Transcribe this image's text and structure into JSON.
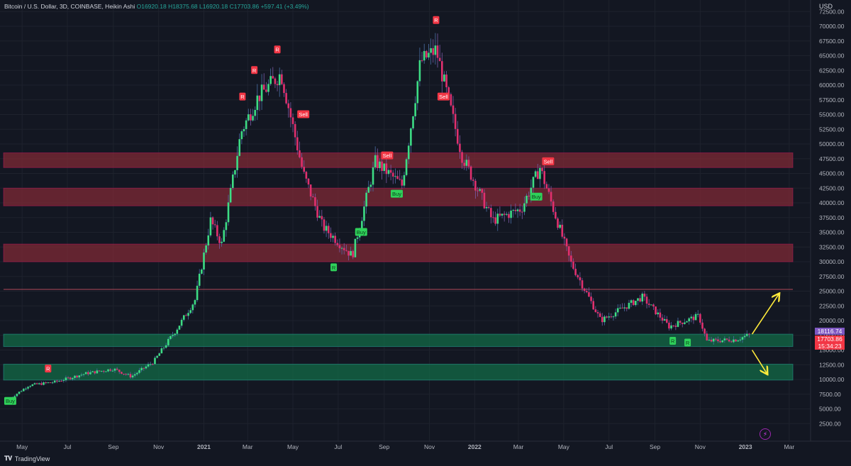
{
  "legend": {
    "symbol": "Bitcoin / U.S. Dollar, 3D, COINBASE, Heikin Ashi",
    "open": "O16920.18",
    "high": "H18375.68",
    "low": "L16920.18",
    "close": "C17703.86",
    "change": "+597.41 (+3.49%)"
  },
  "currency": "USD",
  "price_tags": {
    "upper": "18116.74",
    "close": "17703.86",
    "countdown": "15:34:23"
  },
  "brand": "TradingView",
  "colors": {
    "background": "#131722",
    "up_candle": "#26a69a",
    "down_candle": "#c2185b",
    "resistance_zone": "#7f2a36",
    "support_zone": "#136b47",
    "arrow": "#ffeb3b"
  },
  "chart_data": {
    "type": "candlestick",
    "title": "Bitcoin / U.S. Dollar, 3D, COINBASE, Heikin Ashi",
    "xlabel": "",
    "ylabel": "",
    "x_ticks": [
      "May",
      "Jul",
      "Sep",
      "Nov",
      "2021",
      "Mar",
      "May",
      "Jul",
      "Sep",
      "Nov",
      "2022",
      "Mar",
      "May",
      "Jul",
      "Sep",
      "Nov",
      "2023",
      "Mar"
    ],
    "y_ticks": [
      "72500.00",
      "70000.00",
      "67500.00",
      "65000.00",
      "62500.00",
      "60000.00",
      "57500.00",
      "55000.00",
      "52500.00",
      "50000.00",
      "47500.00",
      "45000.00",
      "42500.00",
      "40000.00",
      "37500.00",
      "35000.00",
      "32500.00",
      "30000.00",
      "27500.00",
      "25000.00",
      "22500.00",
      "20000.00",
      "17500.00",
      "15000.00",
      "12500.00",
      "10000.00",
      "7500.00",
      "5000.00",
      "2500.00"
    ],
    "ylim": [
      0,
      73500
    ],
    "price_path": [
      {
        "date": "2020-04-15",
        "close": 6800
      },
      {
        "date": "2020-05-10",
        "close": 9000
      },
      {
        "date": "2020-06-15",
        "close": 9600
      },
      {
        "date": "2020-07-25",
        "close": 11000
      },
      {
        "date": "2020-09-01",
        "close": 11800
      },
      {
        "date": "2020-09-25",
        "close": 10500
      },
      {
        "date": "2020-10-25",
        "close": 13000
      },
      {
        "date": "2020-11-25",
        "close": 18500
      },
      {
        "date": "2020-12-20",
        "close": 23500
      },
      {
        "date": "2021-01-10",
        "close": 37000
      },
      {
        "date": "2021-01-25",
        "close": 33000
      },
      {
        "date": "2021-02-20",
        "close": 52000
      },
      {
        "date": "2021-03-15",
        "close": 58000
      },
      {
        "date": "2021-04-15",
        "close": 62000
      },
      {
        "date": "2021-05-15",
        "close": 45000
      },
      {
        "date": "2021-06-10",
        "close": 36000
      },
      {
        "date": "2021-07-20",
        "close": 31000
      },
      {
        "date": "2021-08-20",
        "close": 47000
      },
      {
        "date": "2021-09-25",
        "close": 43000
      },
      {
        "date": "2021-10-20",
        "close": 64000
      },
      {
        "date": "2021-11-10",
        "close": 66000
      },
      {
        "date": "2021-12-15",
        "close": 48000
      },
      {
        "date": "2022-01-25",
        "close": 37000
      },
      {
        "date": "2022-03-05",
        "close": 39000
      },
      {
        "date": "2022-03-30",
        "close": 46000
      },
      {
        "date": "2022-05-10",
        "close": 30000
      },
      {
        "date": "2022-06-20",
        "close": 20000
      },
      {
        "date": "2022-08-15",
        "close": 24000
      },
      {
        "date": "2022-09-20",
        "close": 19000
      },
      {
        "date": "2022-10-30",
        "close": 20800
      },
      {
        "date": "2022-11-10",
        "close": 16500
      },
      {
        "date": "2022-12-20",
        "close": 16800
      },
      {
        "date": "2023-01-08",
        "close": 17703.86
      }
    ],
    "zones": [
      {
        "kind": "resistance",
        "from": 46000,
        "to": 48500
      },
      {
        "kind": "resistance",
        "from": 39500,
        "to": 42500
      },
      {
        "kind": "resistance",
        "from": 30000,
        "to": 33000
      },
      {
        "kind": "support",
        "from": 15600,
        "to": 17700
      },
      {
        "kind": "support",
        "from": 9900,
        "to": 12600
      }
    ],
    "levels": [
      {
        "price": 25300,
        "kind": "line"
      }
    ],
    "signals": [
      {
        "label": "Buy",
        "date": "2020-04-15",
        "price": 6300,
        "kind": "buy"
      },
      {
        "label": "R",
        "date": "2020-06-05",
        "price": 11800,
        "kind": "r"
      },
      {
        "label": "R",
        "date": "2021-02-22",
        "price": 58000,
        "kind": "r"
      },
      {
        "label": "R",
        "date": "2021-03-10",
        "price": 62500,
        "kind": "r"
      },
      {
        "label": "R",
        "date": "2021-04-10",
        "price": 66000,
        "kind": "r"
      },
      {
        "label": "Sell",
        "date": "2021-05-15",
        "price": 55000,
        "kind": "sell"
      },
      {
        "label": "R",
        "date": "2021-06-25",
        "price": 29000,
        "kind": "r-green"
      },
      {
        "label": "Buy",
        "date": "2021-08-01",
        "price": 35000,
        "kind": "buy"
      },
      {
        "label": "Sell",
        "date": "2021-09-05",
        "price": 48000,
        "kind": "sell"
      },
      {
        "label": "Buy",
        "date": "2021-09-18",
        "price": 41500,
        "kind": "buy"
      },
      {
        "label": "R",
        "date": "2021-11-10",
        "price": 71000,
        "kind": "r"
      },
      {
        "label": "Sell",
        "date": "2021-11-20",
        "price": 58000,
        "kind": "sell"
      },
      {
        "label": "Buy",
        "date": "2022-03-25",
        "price": 41000,
        "kind": "buy"
      },
      {
        "label": "Sell",
        "date": "2022-04-10",
        "price": 47000,
        "kind": "sell"
      },
      {
        "label": "R",
        "date": "2022-09-25",
        "price": 16500,
        "kind": "r-green"
      },
      {
        "label": "R",
        "date": "2022-10-15",
        "price": 16200,
        "kind": "r-green"
      }
    ],
    "projections": [
      {
        "direction": "up",
        "from_date": "2023-01-10",
        "from_price": 17700,
        "to_date": "2023-02-15",
        "to_price": 24500
      },
      {
        "direction": "down",
        "from_date": "2023-01-10",
        "from_price": 15000,
        "to_date": "2023-01-30",
        "to_price": 11000
      }
    ],
    "grid": true,
    "legend_position": "top-left"
  }
}
